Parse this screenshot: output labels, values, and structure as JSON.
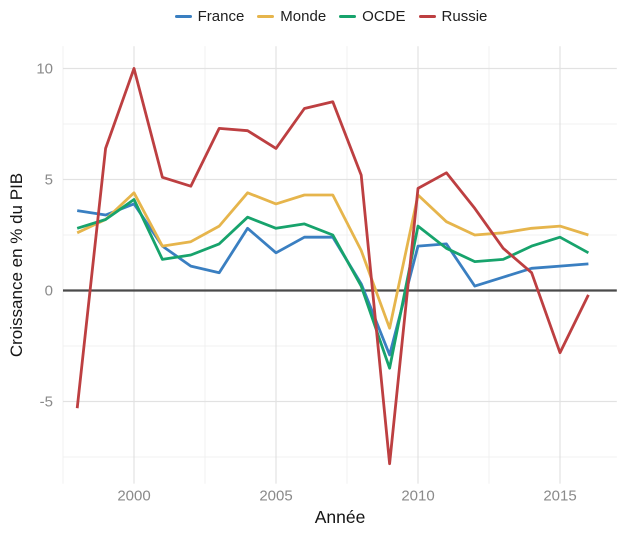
{
  "chart_data": {
    "type": "line",
    "title": "",
    "xlabel": "Année",
    "ylabel": "Croissance en % du PIB",
    "x": [
      1998,
      1999,
      2000,
      2001,
      2002,
      2003,
      2004,
      2005,
      2006,
      2007,
      2008,
      2009,
      2010,
      2011,
      2012,
      2013,
      2014,
      2015,
      2016
    ],
    "series": [
      {
        "name": "France",
        "color": "#3a7fc1",
        "values": [
          3.6,
          3.4,
          3.9,
          2.0,
          1.1,
          0.8,
          2.8,
          1.7,
          2.4,
          2.4,
          0.3,
          -2.9,
          2.0,
          2.1,
          0.2,
          0.6,
          1.0,
          1.1,
          1.2
        ]
      },
      {
        "name": "Monde",
        "color": "#e6b54c",
        "values": [
          2.6,
          3.2,
          4.4,
          2.0,
          2.2,
          2.9,
          4.4,
          3.9,
          4.3,
          4.3,
          1.8,
          -1.7,
          4.3,
          3.1,
          2.5,
          2.6,
          2.8,
          2.9,
          2.5
        ]
      },
      {
        "name": "OCDE",
        "color": "#17a36c",
        "values": [
          2.8,
          3.2,
          4.1,
          1.4,
          1.6,
          2.1,
          3.3,
          2.8,
          3.0,
          2.5,
          0.2,
          -3.5,
          2.9,
          1.9,
          1.3,
          1.4,
          2.0,
          2.4,
          1.7
        ]
      },
      {
        "name": "Russie",
        "color": "#bd3f41",
        "values": [
          -5.3,
          6.4,
          10.0,
          5.1,
          4.7,
          7.3,
          7.2,
          6.4,
          8.2,
          8.5,
          5.2,
          -7.8,
          4.6,
          5.3,
          3.7,
          1.9,
          0.8,
          -2.8,
          -0.2
        ]
      }
    ],
    "x_ticks": [
      2000,
      2005,
      2010,
      2015
    ],
    "x_minor_ticks": [
      1997.5,
      2002.5,
      2007.5,
      2012.5
    ],
    "y_ticks": [
      10,
      5,
      0,
      -5
    ],
    "y_minor_ticks": [
      7.5,
      2.5,
      -2.5,
      -7.5
    ],
    "xlim": [
      1997.5,
      2017.0
    ],
    "ylim": [
      -8.7,
      11.0
    ],
    "grid": true,
    "zero_line": true,
    "legend_position": "top"
  },
  "colors": {
    "background": "#ffffff",
    "grid_major": "#e2e2e2",
    "grid_minor": "#f0f0f0",
    "zero_line": "#4a4a4a",
    "tick_label": "#8a8a8a",
    "axis_title": "#141414",
    "legend_text": "#202020"
  }
}
